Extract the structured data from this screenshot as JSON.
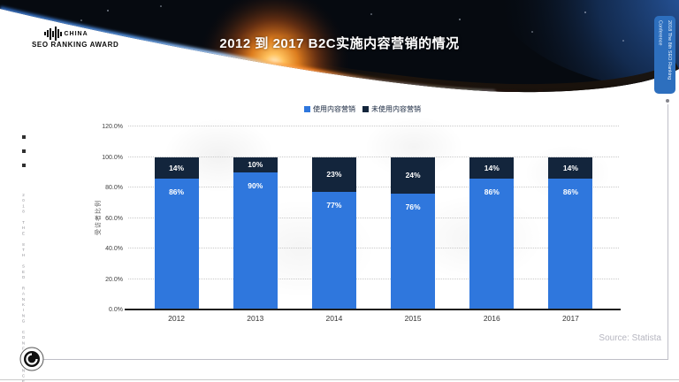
{
  "slide": {
    "logo": {
      "line1": "CHINA",
      "line2": "SEO RANKING AWARD"
    },
    "title": "2012 到 2017 B2C实施内容营销的情况",
    "right_tab_label": "2018 The 8th SEO Ranking Conference",
    "left_vertical_text": "2018 THE 8TH SEO RANKING CONFERENCE",
    "source": "Source: Statista"
  },
  "chart_data": {
    "type": "bar",
    "stacked": true,
    "categories": [
      "2012",
      "2013",
      "2014",
      "2015",
      "2016",
      "2017"
    ],
    "series": [
      {
        "name": "使用内容营销",
        "color": "#2f77dd",
        "values": [
          86,
          90,
          77,
          76,
          86,
          86
        ]
      },
      {
        "name": "未使用内容营销",
        "color": "#13253c",
        "values": [
          14,
          10,
          23,
          24,
          14,
          14
        ]
      }
    ],
    "title": "2012 到 2017 B2C实施内容营销的情况",
    "xlabel": "",
    "ylabel": "受访者比例",
    "ylim": [
      0,
      120
    ],
    "y_ticks": [
      "0.0%",
      "20.0%",
      "40.0%",
      "60.0%",
      "80.0%",
      "100.0%",
      "120.0%"
    ],
    "grid": true,
    "legend_position": "top",
    "value_label_format": "percent"
  }
}
